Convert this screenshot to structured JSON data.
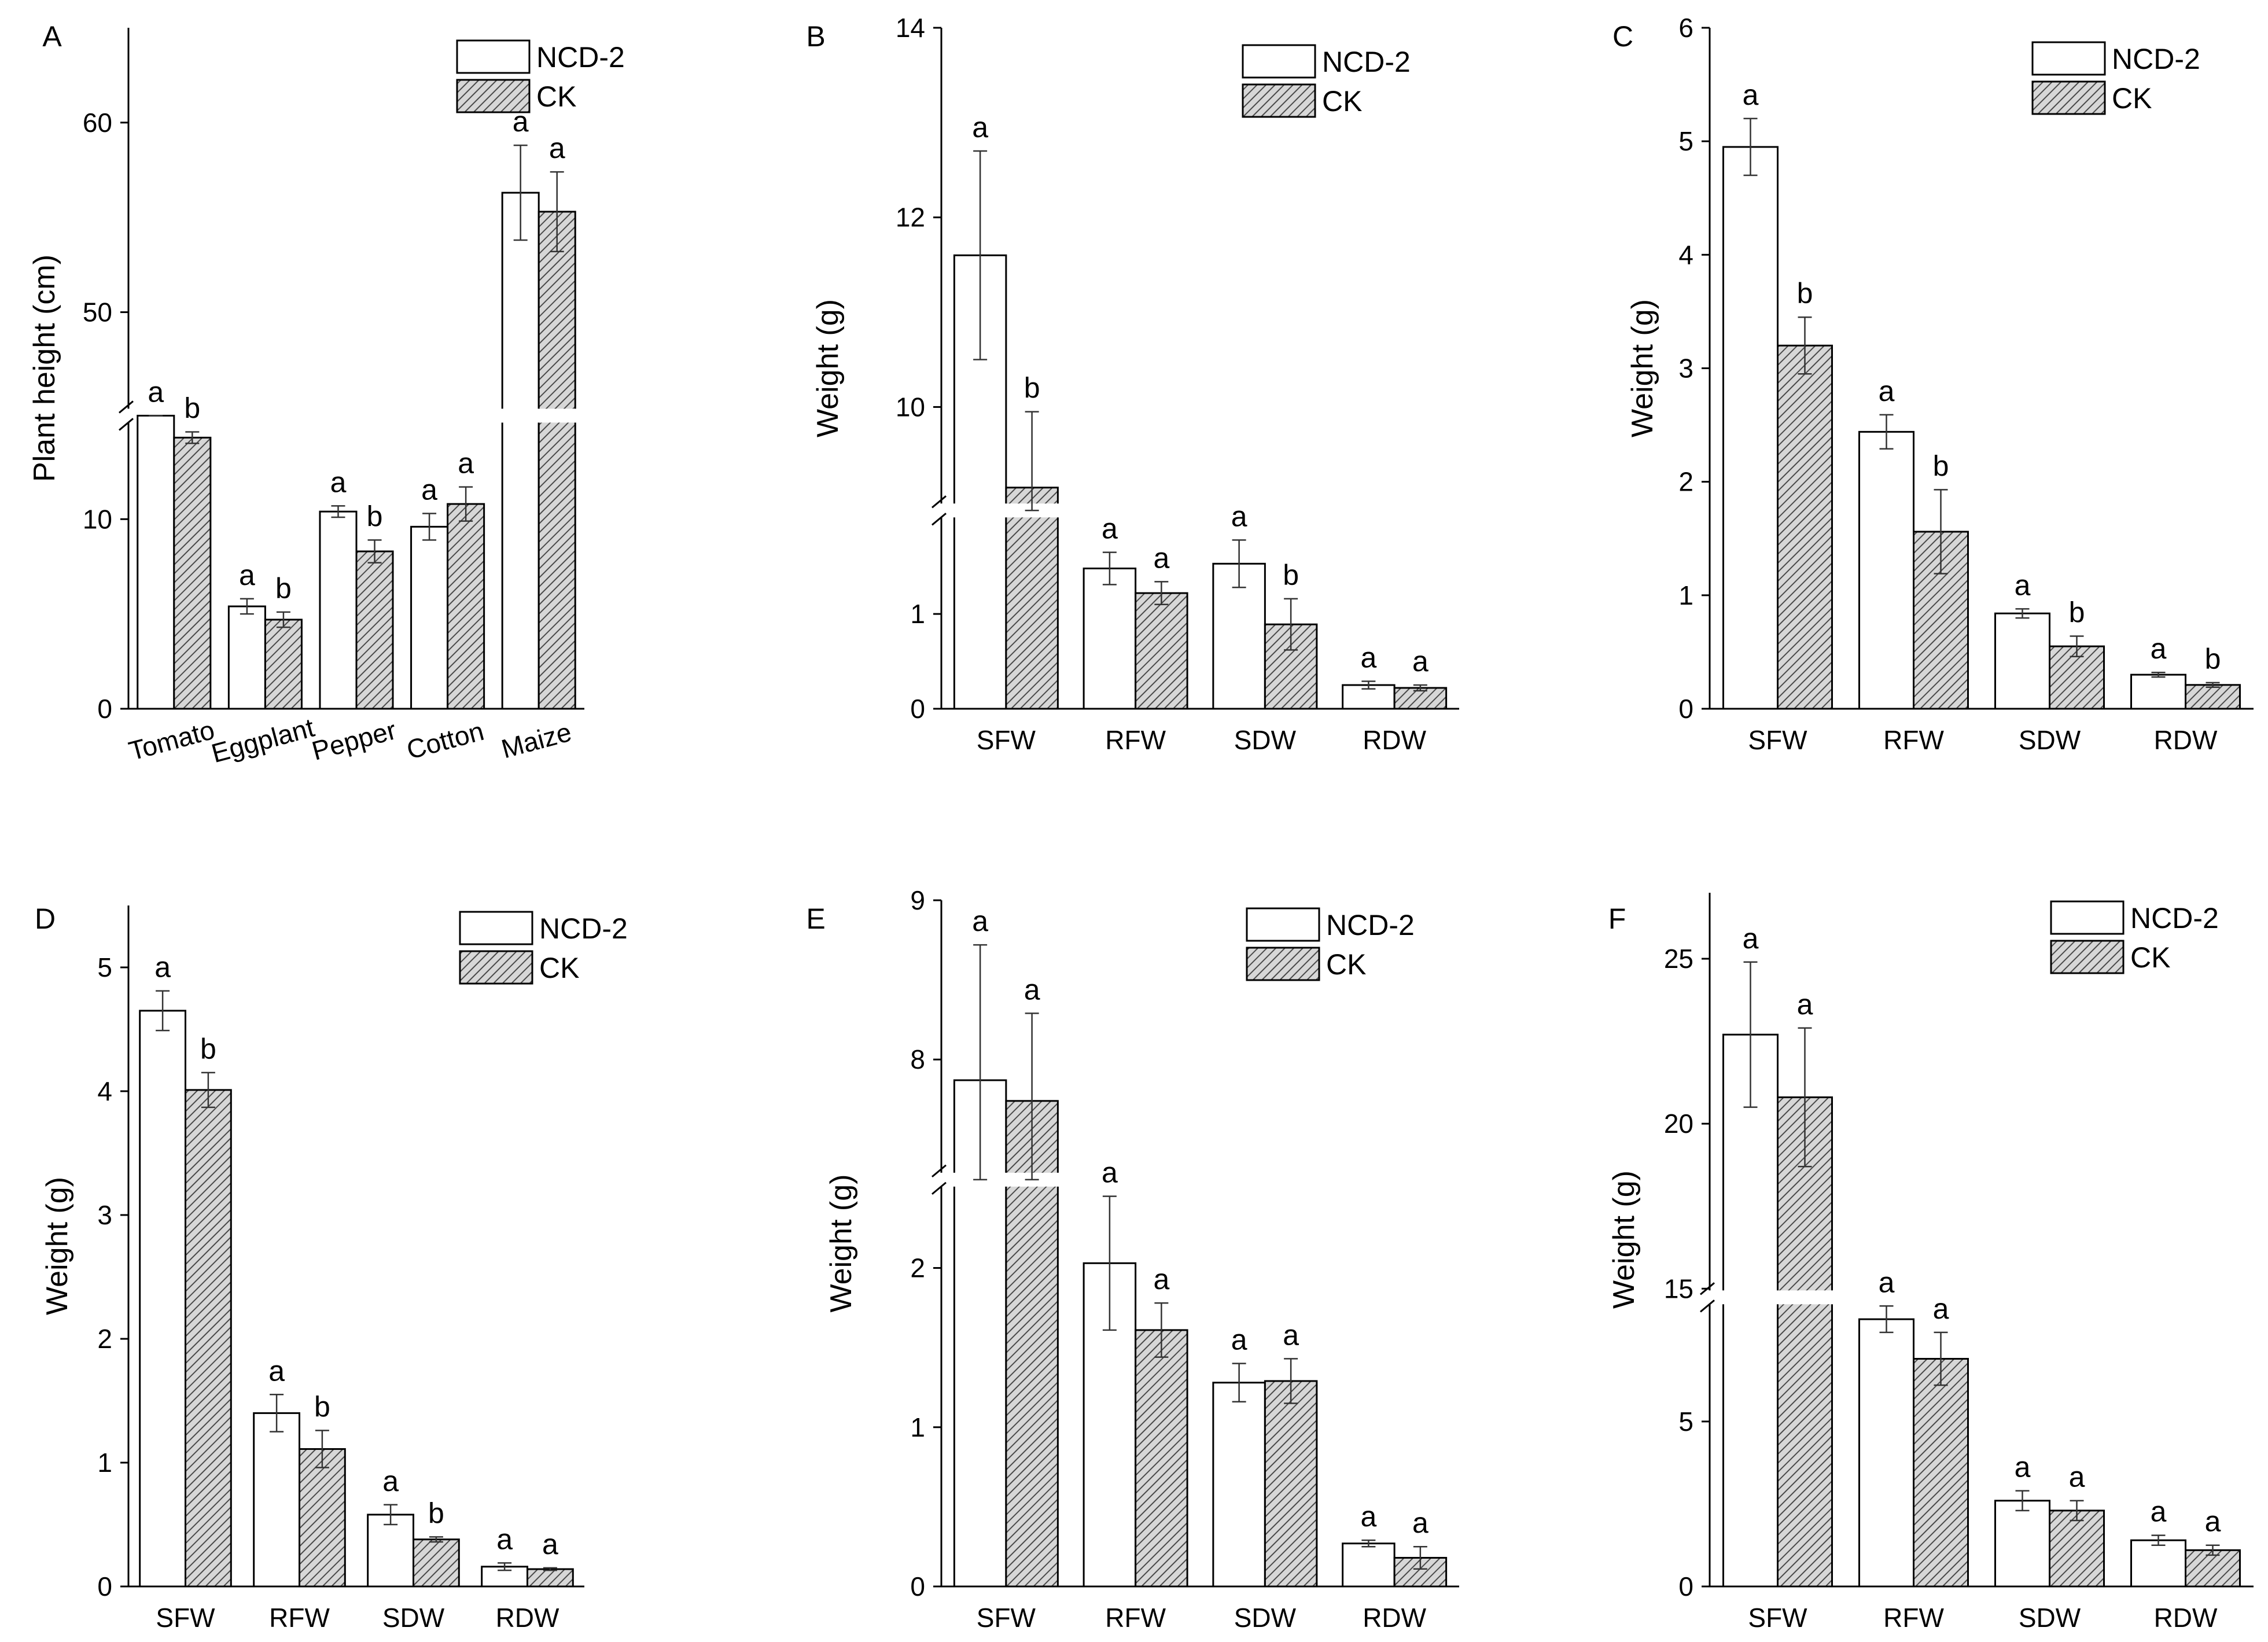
{
  "legend": {
    "series_a": "NCD-2",
    "series_b": "CK"
  },
  "colors": {
    "bar_a_fill": "#ffffff",
    "bar_b_fill": "#d7d7d7",
    "hatch": "#4a4a4a",
    "axis": "#000000"
  },
  "chart_data": [
    {
      "panel": "A",
      "type": "bar",
      "ylabel": "Plant height (cm)",
      "categories": [
        "Tomato",
        "Eggplant",
        "Pepper",
        "Cotton",
        "Maize"
      ],
      "ylim": [
        0,
        65
      ],
      "axis_break": [
        15,
        45
      ],
      "yticks": [
        0,
        10,
        50,
        60
      ],
      "ytick_labels": [
        "0",
        "10",
        "50",
        "60"
      ],
      "series": [
        {
          "name": "NCD-2",
          "values": [
            17.0,
            5.4,
            10.4,
            9.6,
            56.3
          ],
          "errors": [
            1.5,
            0.4,
            0.3,
            0.7,
            2.5
          ],
          "letters": [
            "a",
            "a",
            "a",
            "a",
            "a"
          ]
        },
        {
          "name": "CK",
          "values": [
            14.3,
            4.7,
            8.3,
            10.8,
            55.3
          ],
          "errors": [
            0.3,
            0.4,
            0.6,
            0.9,
            2.1
          ],
          "letters": [
            "b",
            "b",
            "b",
            "a",
            "a"
          ]
        }
      ]
    },
    {
      "panel": "B",
      "type": "bar",
      "ylabel": "Weight (g)",
      "categories": [
        "SFW",
        "RFW",
        "SDW",
        "RDW"
      ],
      "ylim": [
        0,
        14
      ],
      "axis_break": [
        2,
        9
      ],
      "yticks": [
        0,
        1,
        10,
        12,
        14
      ],
      "ytick_labels": [
        "0",
        "1",
        "10",
        "12",
        "14"
      ],
      "series": [
        {
          "name": "NCD-2",
          "values": [
            11.6,
            1.48,
            1.53,
            0.25
          ],
          "errors": [
            1.1,
            0.17,
            0.25,
            0.04
          ],
          "letters": [
            "a",
            "a",
            "a",
            "a"
          ]
        },
        {
          "name": "CK",
          "values": [
            9.15,
            1.22,
            0.89,
            0.22
          ],
          "errors": [
            0.8,
            0.12,
            0.27,
            0.03
          ],
          "letters": [
            "b",
            "a",
            "b",
            "a"
          ]
        }
      ]
    },
    {
      "panel": "C",
      "type": "bar",
      "ylabel": "Weight (g)",
      "categories": [
        "SFW",
        "RFW",
        "SDW",
        "RDW"
      ],
      "ylim": [
        0,
        6
      ],
      "axis_break": null,
      "yticks": [
        0,
        1,
        2,
        3,
        4,
        5,
        6
      ],
      "ytick_labels": [
        "0",
        "1",
        "2",
        "3",
        "4",
        "5",
        "6"
      ],
      "series": [
        {
          "name": "NCD-2",
          "values": [
            4.95,
            2.44,
            0.84,
            0.3
          ],
          "errors": [
            0.25,
            0.15,
            0.04,
            0.02
          ],
          "letters": [
            "a",
            "a",
            "a",
            "a"
          ]
        },
        {
          "name": "CK",
          "values": [
            3.2,
            1.56,
            0.55,
            0.21
          ],
          "errors": [
            0.25,
            0.37,
            0.09,
            0.02
          ],
          "letters": [
            "b",
            "b",
            "b",
            "b"
          ]
        }
      ]
    },
    {
      "panel": "D",
      "type": "bar",
      "ylabel": "Weight (g)",
      "categories": [
        "SFW",
        "RFW",
        "SDW",
        "RDW"
      ],
      "ylim": [
        0,
        5.5
      ],
      "axis_break": null,
      "yticks": [
        0,
        1,
        2,
        3,
        4,
        5
      ],
      "ytick_labels": [
        "0",
        "1",
        "2",
        "3",
        "4",
        "5"
      ],
      "series": [
        {
          "name": "NCD-2",
          "values": [
            4.65,
            1.4,
            0.58,
            0.16
          ],
          "errors": [
            0.16,
            0.15,
            0.08,
            0.03
          ],
          "letters": [
            "a",
            "a",
            "a",
            "a"
          ]
        },
        {
          "name": "CK",
          "values": [
            4.01,
            1.11,
            0.38,
            0.14
          ],
          "errors": [
            0.14,
            0.15,
            0.02,
            0.01
          ],
          "letters": [
            "b",
            "b",
            "b",
            "a"
          ]
        }
      ]
    },
    {
      "panel": "E",
      "type": "bar",
      "ylabel": "Weight (g)",
      "categories": [
        "SFW",
        "RFW",
        "SDW",
        "RDW"
      ],
      "ylim": [
        0,
        9
      ],
      "axis_break": [
        2.5,
        7.3
      ],
      "yticks": [
        0,
        1,
        2,
        8,
        9
      ],
      "ytick_labels": [
        "0",
        "1",
        "2",
        "8",
        "9"
      ],
      "series": [
        {
          "name": "NCD-2",
          "values": [
            7.87,
            2.03,
            1.28,
            0.27
          ],
          "errors": [
            0.85,
            0.42,
            0.12,
            0.02
          ],
          "letters": [
            "a",
            "a",
            "a",
            "a"
          ]
        },
        {
          "name": "CK",
          "values": [
            7.74,
            1.61,
            1.29,
            0.18
          ],
          "errors": [
            0.55,
            0.17,
            0.14,
            0.07
          ],
          "letters": [
            "a",
            "a",
            "a",
            "a"
          ]
        }
      ]
    },
    {
      "panel": "F",
      "type": "bar",
      "ylabel": "Weight (g)",
      "categories": [
        "SFW",
        "RFW",
        "SDW",
        "RDW"
      ],
      "ylim": [
        0,
        27
      ],
      "axis_break": [
        8.5,
        15
      ],
      "yticks": [
        0,
        5,
        15,
        20,
        25
      ],
      "ytick_labels": [
        "0",
        "5",
        "15",
        "20",
        "25"
      ],
      "series": [
        {
          "name": "NCD-2",
          "values": [
            22.7,
            8.1,
            2.6,
            1.4
          ],
          "errors": [
            2.2,
            0.4,
            0.3,
            0.15
          ],
          "letters": [
            "a",
            "a",
            "a",
            "a"
          ]
        },
        {
          "name": "CK",
          "values": [
            20.8,
            6.9,
            2.3,
            1.1
          ],
          "errors": [
            2.1,
            0.8,
            0.3,
            0.15
          ],
          "letters": [
            "a",
            "a",
            "a",
            "a"
          ]
        }
      ]
    }
  ]
}
